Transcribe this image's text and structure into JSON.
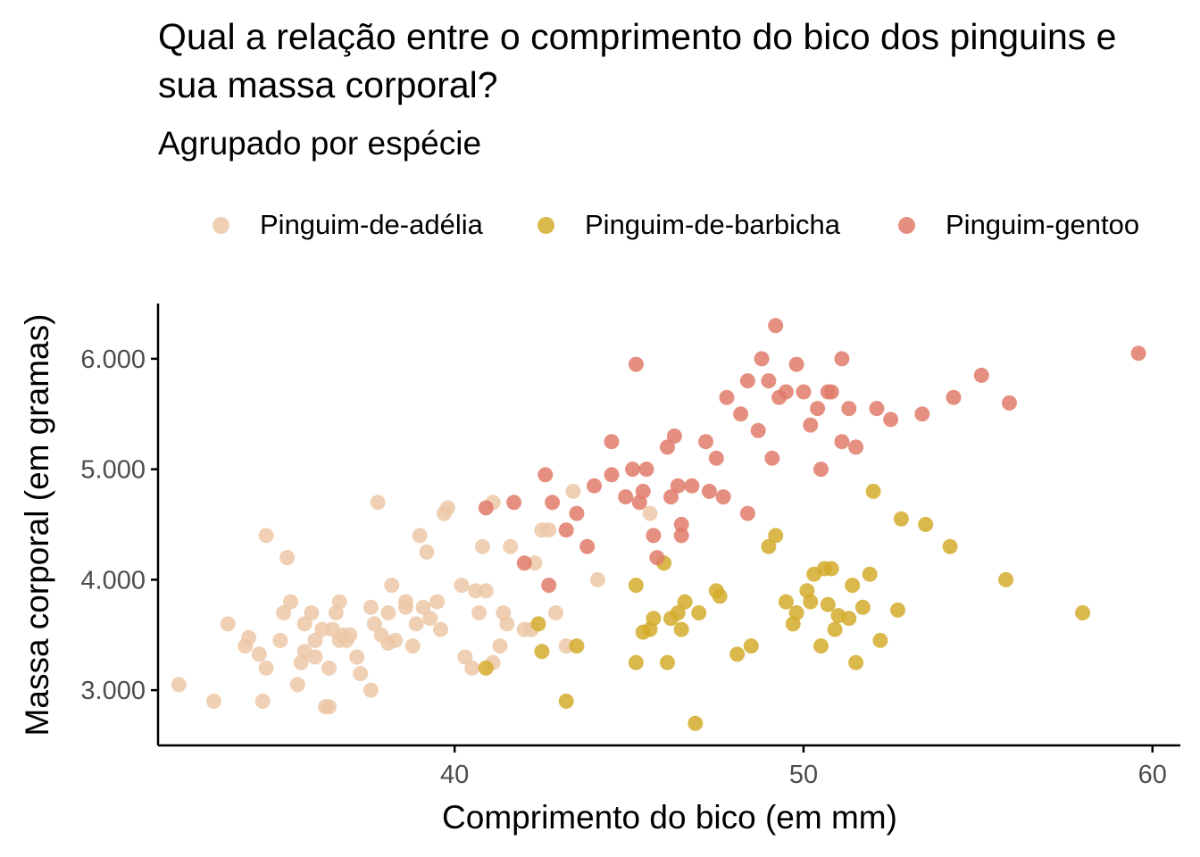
{
  "chart_data": {
    "type": "scatter",
    "title": "Qual a relação entre o comprimento do bico dos pinguins e sua massa corporal?",
    "subtitle": "Agrupado por espécie",
    "xlabel": "Comprimento do bico (em mm)",
    "ylabel": "Massa corporal (em gramas)",
    "xlim": [
      31.5,
      60.8
    ],
    "ylim": [
      2500,
      6500
    ],
    "x_ticks": [
      40,
      50,
      60
    ],
    "x_tick_labels": [
      "40",
      "50",
      "60"
    ],
    "y_ticks": [
      3000,
      4000,
      5000,
      6000
    ],
    "y_tick_labels": [
      "3.000",
      "4.000",
      "5.000",
      "6.000"
    ],
    "grid": false,
    "legend_position": "top",
    "series": [
      {
        "name": "Pinguim-de-adélia",
        "color": "#ECC8A7",
        "points": [
          [
            32.1,
            3050
          ],
          [
            33.1,
            2900
          ],
          [
            33.5,
            3600
          ],
          [
            34.0,
            3400
          ],
          [
            34.1,
            3475
          ],
          [
            34.4,
            3325
          ],
          [
            34.5,
            2900
          ],
          [
            34.6,
            4400
          ],
          [
            34.6,
            3200
          ],
          [
            35.0,
            3450
          ],
          [
            35.1,
            3700
          ],
          [
            35.2,
            4200
          ],
          [
            35.3,
            3800
          ],
          [
            35.5,
            3050
          ],
          [
            35.6,
            3250
          ],
          [
            35.7,
            3350
          ],
          [
            35.7,
            3600
          ],
          [
            35.9,
            3700
          ],
          [
            36.0,
            3300
          ],
          [
            36.0,
            3450
          ],
          [
            36.2,
            3550
          ],
          [
            36.3,
            2850
          ],
          [
            36.4,
            3200
          ],
          [
            36.4,
            2850
          ],
          [
            36.5,
            3550
          ],
          [
            36.6,
            3700
          ],
          [
            36.7,
            3450
          ],
          [
            36.7,
            3800
          ],
          [
            36.8,
            3500
          ],
          [
            36.9,
            3450
          ],
          [
            37.0,
            3500
          ],
          [
            37.2,
            3300
          ],
          [
            37.3,
            3150
          ],
          [
            37.6,
            3000
          ],
          [
            37.6,
            3750
          ],
          [
            37.7,
            3600
          ],
          [
            37.8,
            4700
          ],
          [
            37.9,
            3500
          ],
          [
            38.1,
            3700
          ],
          [
            38.1,
            3425
          ],
          [
            38.2,
            3950
          ],
          [
            38.3,
            3450
          ],
          [
            38.6,
            3800
          ],
          [
            38.6,
            3750
          ],
          [
            38.8,
            3400
          ],
          [
            38.9,
            3600
          ],
          [
            39.0,
            4400
          ],
          [
            39.1,
            3750
          ],
          [
            39.2,
            4250
          ],
          [
            39.3,
            3650
          ],
          [
            39.5,
            3800
          ],
          [
            39.6,
            3550
          ],
          [
            39.7,
            4600
          ],
          [
            39.8,
            4650
          ],
          [
            40.2,
            3950
          ],
          [
            40.3,
            3300
          ],
          [
            40.5,
            3200
          ],
          [
            40.6,
            3900
          ],
          [
            40.7,
            3700
          ],
          [
            40.8,
            4300
          ],
          [
            40.9,
            3900
          ],
          [
            41.1,
            4700
          ],
          [
            41.1,
            3250
          ],
          [
            41.3,
            3400
          ],
          [
            41.4,
            3700
          ],
          [
            41.5,
            3600
          ],
          [
            41.6,
            4300
          ],
          [
            42.0,
            3550
          ],
          [
            42.2,
            3550
          ],
          [
            42.3,
            4150
          ],
          [
            42.5,
            4450
          ],
          [
            42.7,
            4450
          ],
          [
            42.9,
            3700
          ],
          [
            43.2,
            3400
          ],
          [
            43.4,
            4800
          ],
          [
            44.1,
            4000
          ],
          [
            45.6,
            4600
          ]
        ]
      },
      {
        "name": "Pinguim-de-barbicha",
        "color": "#D4AC2B",
        "points": [
          [
            40.9,
            3200
          ],
          [
            42.4,
            3600
          ],
          [
            42.5,
            3350
          ],
          [
            43.2,
            2900
          ],
          [
            43.5,
            3400
          ],
          [
            45.2,
            3950
          ],
          [
            45.2,
            3250
          ],
          [
            45.4,
            3525
          ],
          [
            45.6,
            3550
          ],
          [
            45.7,
            3650
          ],
          [
            46.0,
            4150
          ],
          [
            46.1,
            3250
          ],
          [
            46.2,
            3650
          ],
          [
            46.4,
            3700
          ],
          [
            46.5,
            3550
          ],
          [
            46.6,
            3800
          ],
          [
            46.9,
            2700
          ],
          [
            47.0,
            3700
          ],
          [
            47.5,
            3900
          ],
          [
            47.6,
            3850
          ],
          [
            48.1,
            3325
          ],
          [
            48.5,
            3400
          ],
          [
            49.0,
            4300
          ],
          [
            49.2,
            4400
          ],
          [
            49.5,
            3800
          ],
          [
            49.7,
            3600
          ],
          [
            49.8,
            3700
          ],
          [
            50.1,
            3900
          ],
          [
            50.2,
            3800
          ],
          [
            50.3,
            4050
          ],
          [
            50.5,
            3400
          ],
          [
            50.6,
            4100
          ],
          [
            50.7,
            3775
          ],
          [
            50.8,
            4100
          ],
          [
            50.9,
            3550
          ],
          [
            51.0,
            3675
          ],
          [
            51.3,
            3650
          ],
          [
            51.4,
            3950
          ],
          [
            51.5,
            3250
          ],
          [
            51.7,
            3750
          ],
          [
            51.9,
            4050
          ],
          [
            52.0,
            4800
          ],
          [
            52.2,
            3450
          ],
          [
            52.7,
            3725
          ],
          [
            52.8,
            4550
          ],
          [
            53.5,
            4500
          ],
          [
            54.2,
            4300
          ],
          [
            55.8,
            4000
          ],
          [
            58.0,
            3700
          ]
        ]
      },
      {
        "name": "Pinguim-gentoo",
        "color": "#E07B6A",
        "points": [
          [
            40.9,
            4650
          ],
          [
            41.7,
            4700
          ],
          [
            42.0,
            4150
          ],
          [
            42.6,
            4950
          ],
          [
            42.7,
            3950
          ],
          [
            42.8,
            4700
          ],
          [
            43.2,
            4450
          ],
          [
            43.5,
            4600
          ],
          [
            43.8,
            4300
          ],
          [
            44.0,
            4850
          ],
          [
            44.5,
            4950
          ],
          [
            44.9,
            4750
          ],
          [
            45.1,
            5000
          ],
          [
            45.2,
            5950
          ],
          [
            45.3,
            4700
          ],
          [
            45.4,
            4800
          ],
          [
            45.5,
            5000
          ],
          [
            45.7,
            4400
          ],
          [
            45.8,
            4200
          ],
          [
            46.1,
            5200
          ],
          [
            46.2,
            4750
          ],
          [
            46.3,
            5300
          ],
          [
            46.4,
            4850
          ],
          [
            46.5,
            4500
          ],
          [
            46.8,
            4850
          ],
          [
            47.2,
            5250
          ],
          [
            47.3,
            4800
          ],
          [
            47.5,
            5100
          ],
          [
            47.7,
            4750
          ],
          [
            48.2,
            5500
          ],
          [
            48.4,
            4600
          ],
          [
            48.7,
            5350
          ],
          [
            49.0,
            5800
          ],
          [
            49.1,
            5100
          ],
          [
            49.3,
            5650
          ],
          [
            49.5,
            5700
          ],
          [
            49.8,
            5950
          ],
          [
            50.0,
            5700
          ],
          [
            50.2,
            5400
          ],
          [
            50.4,
            5550
          ],
          [
            50.5,
            5000
          ],
          [
            50.7,
            5700
          ],
          [
            51.1,
            5250
          ],
          [
            51.3,
            5550
          ],
          [
            51.5,
            5200
          ],
          [
            52.1,
            5550
          ],
          [
            52.5,
            5450
          ],
          [
            53.4,
            5500
          ],
          [
            54.3,
            5650
          ],
          [
            55.1,
            5850
          ],
          [
            55.9,
            5600
          ],
          [
            59.6,
            6050
          ],
          [
            49.2,
            6300
          ],
          [
            48.8,
            6000
          ],
          [
            51.1,
            6000
          ],
          [
            44.5,
            5250
          ],
          [
            46.5,
            4400
          ],
          [
            47.8,
            5650
          ],
          [
            48.4,
            5800
          ],
          [
            50.8,
            5700
          ]
        ]
      }
    ]
  }
}
